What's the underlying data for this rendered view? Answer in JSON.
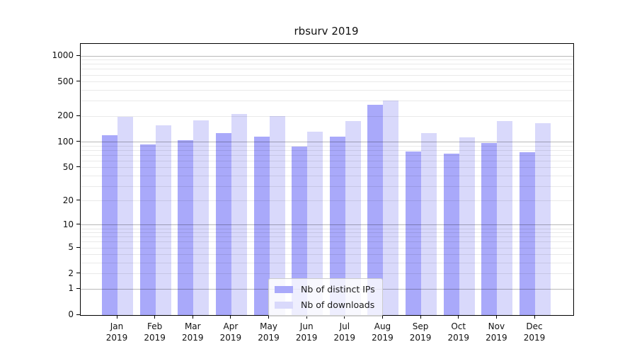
{
  "chart_data": {
    "type": "bar",
    "title": "rbsurv 2019",
    "categories": [
      {
        "month": "Jan",
        "year": "2019"
      },
      {
        "month": "Feb",
        "year": "2019"
      },
      {
        "month": "Mar",
        "year": "2019"
      },
      {
        "month": "Apr",
        "year": "2019"
      },
      {
        "month": "May",
        "year": "2019"
      },
      {
        "month": "Jun",
        "year": "2019"
      },
      {
        "month": "Jul",
        "year": "2019"
      },
      {
        "month": "Aug",
        "year": "2019"
      },
      {
        "month": "Sep",
        "year": "2019"
      },
      {
        "month": "Oct",
        "year": "2019"
      },
      {
        "month": "Nov",
        "year": "2019"
      },
      {
        "month": "Dec",
        "year": "2019"
      }
    ],
    "series": [
      {
        "name": "Nb of distinct IPs",
        "color": "#a9a9fa",
        "values": [
          120,
          94,
          105,
          128,
          116,
          88,
          116,
          270,
          78,
          73,
          97,
          76
        ]
      },
      {
        "name": "Nb of downloads",
        "color": "#d9d9fb",
        "values": [
          198,
          157,
          179,
          211,
          201,
          131,
          174,
          303,
          126,
          114,
          174,
          165
        ]
      }
    ],
    "y_axis": {
      "scale": "log10(1+x)",
      "tick_values": [
        1000,
        500,
        200,
        100,
        50,
        20,
        10,
        5,
        2,
        1,
        0
      ],
      "max": 1380
    },
    "legend": {
      "position": "inside-bottom-center"
    },
    "grid": {
      "major_at": [
        1,
        10,
        100,
        1000
      ],
      "minor_multiples": [
        2,
        3,
        4,
        5,
        6,
        7,
        8,
        9
      ]
    }
  }
}
